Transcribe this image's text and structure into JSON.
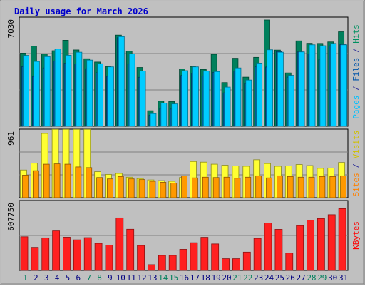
{
  "chart_data": [
    {
      "type": "bar",
      "title": "Daily usage for March 2026",
      "categories": [
        "1",
        "2",
        "3",
        "4",
        "5",
        "6",
        "7",
        "8",
        "9",
        "10",
        "11",
        "12",
        "13",
        "14",
        "15",
        "16",
        "17",
        "18",
        "19",
        "20",
        "21",
        "22",
        "23",
        "24",
        "25",
        "26",
        "27",
        "28",
        "29",
        "30",
        "31"
      ],
      "weekend_days": [
        "1",
        "7",
        "8",
        "14",
        "15",
        "21",
        "22",
        "28",
        "29"
      ],
      "ylim": [
        0,
        7030
      ],
      "max_tick_label": "7030",
      "right_label_parts": [
        {
          "text": "Pages",
          "color": "#00c0ff"
        },
        {
          "text": " / ",
          "color": "#333399"
        },
        {
          "text": "Files",
          "color": "#0055aa"
        },
        {
          "text": " / ",
          "color": "#333399"
        },
        {
          "text": "Hits",
          "color": "#009060"
        }
      ],
      "series": [
        {
          "name": "Hits",
          "color": "#00805c",
          "values": [
            4840,
            5300,
            4780,
            5000,
            5690,
            5050,
            4470,
            4250,
            3950,
            6030,
            4970,
            3890,
            1030,
            1660,
            1630,
            3800,
            3940,
            3760,
            4760,
            2890,
            4500,
            3250,
            4560,
            7030,
            5040,
            3530,
            5650,
            5490,
            5480,
            5580,
            6250
          ]
        },
        {
          "name": "Files",
          "color": "#0060a0",
          "values": [
            3950,
            3300,
            3860,
            4310,
            4170,
            4130,
            3810,
            3540,
            3310,
            5860,
            4120,
            3240,
            730,
            1180,
            1140,
            3360,
            3520,
            3320,
            3560,
            2210,
            3650,
            2810,
            3950,
            3920,
            4940,
            3250,
            4920,
            4780,
            4400,
            5320,
            5400
          ]
        },
        {
          "name": "Pages",
          "color": "#00ccff",
          "values": [
            4690,
            4290,
            4610,
            5110,
            4700,
            4900,
            4380,
            4140,
            3930,
            5930,
            4790,
            3660,
            840,
            1530,
            1480,
            3680,
            3930,
            3650,
            3620,
            2590,
            3860,
            3060,
            4180,
            5060,
            4900,
            3370,
            4920,
            5390,
            5330,
            5480,
            5390
          ]
        }
      ]
    },
    {
      "type": "bar",
      "ylim": [
        0,
        961
      ],
      "max_tick_label": "961",
      "right_label_parts": [
        {
          "text": "Sites",
          "color": "#ff8000"
        },
        {
          "text": " / ",
          "color": "#333399"
        },
        {
          "text": "Visits",
          "color": "#d0c000"
        }
      ],
      "series": [
        {
          "name": "Visits",
          "color": "#ffff33",
          "values": [
            405,
            505,
            940,
            1000,
            1000,
            1000,
            1000,
            380,
            340,
            355,
            300,
            280,
            260,
            250,
            240,
            295,
            530,
            520,
            490,
            475,
            465,
            460,
            555,
            500,
            460,
            465,
            485,
            470,
            430,
            435,
            515
          ]
        },
        {
          "name": "Sites",
          "color": "#ff9900",
          "values": [
            330,
            395,
            490,
            495,
            490,
            450,
            440,
            295,
            275,
            310,
            275,
            265,
            240,
            225,
            215,
            320,
            290,
            300,
            295,
            300,
            285,
            300,
            320,
            290,
            320,
            310,
            300,
            300,
            310,
            310,
            320
          ]
        }
      ]
    },
    {
      "type": "bar",
      "ylim": [
        0,
        607750
      ],
      "max_tick_label": "607750",
      "right_label_parts": [
        {
          "text": "KBytes",
          "color": "#ff0000"
        }
      ],
      "series": [
        {
          "name": "KBytes",
          "color": "#ff2020",
          "values": [
            305000,
            209000,
            295000,
            358000,
            301000,
            277000,
            297000,
            245000,
            230000,
            476000,
            373000,
            226000,
            52000,
            136000,
            136000,
            191000,
            251000,
            300000,
            240000,
            106000,
            106000,
            166000,
            290000,
            430000,
            372000,
            157000,
            406000,
            455000,
            470000,
            505000,
            560000
          ]
        }
      ]
    }
  ]
}
